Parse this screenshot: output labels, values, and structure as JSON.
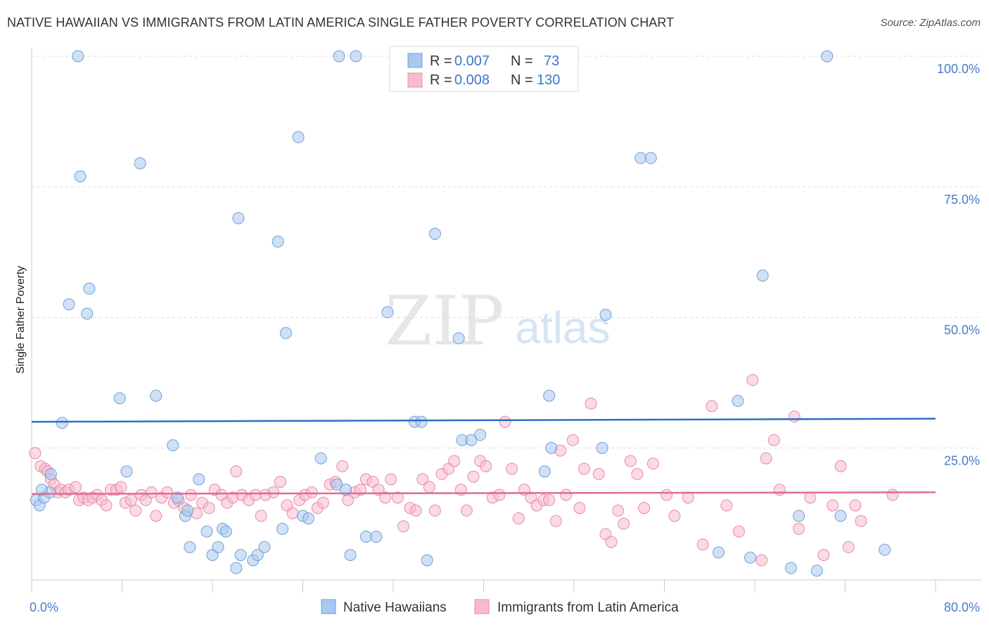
{
  "title": "NATIVE HAWAIIAN VS IMMIGRANTS FROM LATIN AMERICA SINGLE FATHER POVERTY CORRELATION CHART",
  "source": "Source: ZipAtlas.com",
  "watermark": {
    "zip": "ZIP",
    "atlas": "atlas"
  },
  "colors": {
    "blue_fill": "#a9c8ef",
    "blue_stroke": "#6f9fd8",
    "blue_line": "#2b6fc7",
    "pink_fill": "#f6bccd",
    "pink_stroke": "#e88aa8",
    "pink_line": "#e36a94",
    "grid": "#dcdcdc",
    "tick_text": "#4a7cc7"
  },
  "legend": {
    "rows": [
      {
        "r_label": "R =",
        "r_value": "0.007",
        "n_label": "N =",
        "n_value": "73"
      },
      {
        "r_label": "R =",
        "r_value": "0.008",
        "n_label": "N =",
        "n_value": "130"
      }
    ]
  },
  "chart_data": {
    "type": "scatter",
    "title": "NATIVE HAWAIIAN VS IMMIGRANTS FROM LATIN AMERICA SINGLE FATHER POVERTY CORRELATION CHART",
    "xlabel": "",
    "ylabel": "Single Father Poverty",
    "xlim": [
      0,
      80
    ],
    "ylim": [
      0,
      100
    ],
    "x_tick_labels": [
      "0.0%",
      "80.0%"
    ],
    "y_tick_labels": [
      "25.0%",
      "50.0%",
      "75.0%",
      "100.0%"
    ],
    "y_ticks": [
      25,
      50,
      75,
      100
    ],
    "legend_position": "top-center",
    "series": [
      {
        "name": "Native Hawaiians",
        "r": 0.007,
        "n": 73,
        "trend": {
          "y_at_x0": 30.0,
          "y_at_x80": 30.6
        },
        "points": [
          [
            0.4,
            15.0
          ],
          [
            0.7,
            14.0
          ],
          [
            1.1,
            15.5
          ],
          [
            1.7,
            20.0
          ],
          [
            1.6,
            16.5
          ],
          [
            2.7,
            29.8
          ],
          [
            3.3,
            52.5
          ],
          [
            4.1,
            100
          ],
          [
            4.3,
            77.0
          ],
          [
            5.1,
            55.5
          ],
          [
            4.9,
            50.7
          ],
          [
            7.8,
            34.5
          ],
          [
            8.4,
            20.5
          ],
          [
            9.6,
            79.5
          ],
          [
            11.0,
            35.0
          ],
          [
            12.5,
            25.5
          ],
          [
            12.9,
            15.5
          ],
          [
            13.6,
            12.0
          ],
          [
            13.8,
            13.0
          ],
          [
            14.0,
            6.0
          ],
          [
            14.8,
            19.0
          ],
          [
            15.5,
            9.0
          ],
          [
            16.0,
            4.5
          ],
          [
            16.5,
            6.0
          ],
          [
            16.9,
            9.5
          ],
          [
            17.2,
            9.0
          ],
          [
            18.1,
            2.0
          ],
          [
            18.5,
            4.5
          ],
          [
            18.3,
            69.0
          ],
          [
            19.6,
            3.5
          ],
          [
            20.0,
            4.5
          ],
          [
            20.6,
            6.0
          ],
          [
            21.8,
            64.5
          ],
          [
            22.2,
            9.5
          ],
          [
            22.5,
            47.0
          ],
          [
            23.6,
            84.5
          ],
          [
            24.0,
            12.0
          ],
          [
            24.5,
            11.5
          ],
          [
            25.6,
            23.0
          ],
          [
            27.0,
            18.0
          ],
          [
            27.2,
            100
          ],
          [
            27.8,
            17.0
          ],
          [
            28.2,
            4.5
          ],
          [
            28.7,
            100
          ],
          [
            29.6,
            8.0
          ],
          [
            30.5,
            8.0
          ],
          [
            31.5,
            51.0
          ],
          [
            33.9,
            30.0
          ],
          [
            34.5,
            30.0
          ],
          [
            35.0,
            3.5
          ],
          [
            35.7,
            66.0
          ],
          [
            37.8,
            46.0
          ],
          [
            38.1,
            26.5
          ],
          [
            38.9,
            26.5
          ],
          [
            39.7,
            27.5
          ],
          [
            45.4,
            20.5
          ],
          [
            45.8,
            35.0
          ],
          [
            46.0,
            25.0
          ],
          [
            50.5,
            25.0
          ],
          [
            50.8,
            50.5
          ],
          [
            53.9,
            80.5
          ],
          [
            54.8,
            80.5
          ],
          [
            60.8,
            5.0
          ],
          [
            62.5,
            34.0
          ],
          [
            63.6,
            4.0
          ],
          [
            64.7,
            58.0
          ],
          [
            67.2,
            2.0
          ],
          [
            67.9,
            12.0
          ],
          [
            69.5,
            1.5
          ],
          [
            70.4,
            100
          ],
          [
            71.6,
            12.0
          ],
          [
            75.5,
            5.5
          ],
          [
            0.9,
            17.0
          ]
        ]
      },
      {
        "name": "Immigrants from Latin America",
        "r": 0.008,
        "n": 130,
        "trend": {
          "y_at_x0": 16.2,
          "y_at_x80": 16.5
        },
        "points": [
          [
            0.3,
            24.0
          ],
          [
            0.8,
            21.5
          ],
          [
            1.2,
            21.0
          ],
          [
            1.4,
            20.5
          ],
          [
            1.7,
            19.0
          ],
          [
            2.0,
            18.0
          ],
          [
            2.3,
            16.5
          ],
          [
            2.6,
            17.0
          ],
          [
            3.0,
            16.5
          ],
          [
            3.3,
            17.0
          ],
          [
            3.9,
            17.5
          ],
          [
            4.2,
            15.0
          ],
          [
            4.6,
            15.5
          ],
          [
            5.0,
            15.0
          ],
          [
            5.4,
            15.5
          ],
          [
            5.8,
            16.0
          ],
          [
            6.2,
            15.0
          ],
          [
            6.6,
            14.0
          ],
          [
            7.0,
            17.0
          ],
          [
            7.5,
            17.0
          ],
          [
            7.9,
            17.5
          ],
          [
            8.3,
            14.5
          ],
          [
            8.8,
            15.0
          ],
          [
            9.2,
            13.0
          ],
          [
            9.7,
            16.0
          ],
          [
            10.1,
            15.0
          ],
          [
            10.6,
            16.5
          ],
          [
            11.0,
            12.0
          ],
          [
            11.5,
            15.5
          ],
          [
            12.0,
            16.5
          ],
          [
            12.6,
            14.5
          ],
          [
            13.0,
            15.0
          ],
          [
            13.5,
            13.5
          ],
          [
            14.1,
            16.0
          ],
          [
            14.6,
            12.5
          ],
          [
            15.1,
            14.5
          ],
          [
            15.7,
            13.5
          ],
          [
            16.2,
            17.0
          ],
          [
            16.8,
            16.0
          ],
          [
            17.3,
            14.5
          ],
          [
            17.8,
            15.5
          ],
          [
            18.1,
            20.5
          ],
          [
            18.6,
            16.0
          ],
          [
            19.2,
            15.0
          ],
          [
            19.8,
            16.0
          ],
          [
            20.3,
            12.0
          ],
          [
            20.7,
            16.0
          ],
          [
            21.4,
            16.5
          ],
          [
            22.0,
            18.5
          ],
          [
            22.6,
            14.0
          ],
          [
            23.1,
            12.5
          ],
          [
            23.7,
            15.0
          ],
          [
            24.2,
            16.0
          ],
          [
            24.8,
            16.5
          ],
          [
            25.3,
            13.5
          ],
          [
            25.8,
            14.5
          ],
          [
            26.4,
            18.0
          ],
          [
            26.9,
            18.5
          ],
          [
            27.5,
            21.5
          ],
          [
            28.0,
            15.0
          ],
          [
            28.6,
            16.5
          ],
          [
            29.1,
            17.0
          ],
          [
            29.6,
            19.0
          ],
          [
            30.2,
            18.5
          ],
          [
            30.7,
            17.0
          ],
          [
            31.3,
            15.5
          ],
          [
            31.8,
            19.0
          ],
          [
            32.4,
            15.5
          ],
          [
            32.9,
            10.0
          ],
          [
            33.5,
            13.5
          ],
          [
            34.0,
            13.0
          ],
          [
            34.6,
            19.0
          ],
          [
            35.2,
            17.5
          ],
          [
            35.7,
            13.0
          ],
          [
            36.3,
            20.0
          ],
          [
            36.9,
            21.0
          ],
          [
            37.4,
            22.5
          ],
          [
            38.0,
            17.0
          ],
          [
            38.5,
            13.0
          ],
          [
            39.1,
            19.5
          ],
          [
            39.7,
            22.5
          ],
          [
            40.2,
            21.5
          ],
          [
            40.8,
            15.5
          ],
          [
            41.4,
            16.0
          ],
          [
            41.9,
            30.0
          ],
          [
            42.5,
            21.0
          ],
          [
            43.1,
            11.5
          ],
          [
            43.6,
            17.0
          ],
          [
            44.2,
            15.5
          ],
          [
            44.7,
            14.0
          ],
          [
            45.3,
            15.0
          ],
          [
            45.8,
            15.0
          ],
          [
            46.4,
            11.0
          ],
          [
            46.8,
            24.5
          ],
          [
            47.3,
            16.0
          ],
          [
            47.9,
            26.5
          ],
          [
            48.5,
            13.5
          ],
          [
            48.9,
            21.0
          ],
          [
            49.5,
            33.5
          ],
          [
            50.2,
            20.0
          ],
          [
            50.8,
            8.5
          ],
          [
            51.3,
            7.0
          ],
          [
            51.9,
            13.0
          ],
          [
            52.4,
            10.5
          ],
          [
            53.0,
            22.5
          ],
          [
            53.6,
            20.0
          ],
          [
            54.2,
            13.5
          ],
          [
            55.0,
            22.0
          ],
          [
            56.2,
            16.0
          ],
          [
            56.9,
            12.0
          ],
          [
            58.1,
            15.5
          ],
          [
            59.4,
            6.5
          ],
          [
            60.2,
            33.0
          ],
          [
            61.5,
            14.0
          ],
          [
            62.6,
            9.0
          ],
          [
            63.8,
            38.0
          ],
          [
            64.6,
            3.5
          ],
          [
            65.0,
            23.0
          ],
          [
            65.7,
            26.5
          ],
          [
            66.2,
            17.0
          ],
          [
            67.5,
            31.0
          ],
          [
            67.9,
            9.5
          ],
          [
            68.9,
            15.5
          ],
          [
            70.1,
            4.5
          ],
          [
            70.9,
            14.0
          ],
          [
            71.6,
            21.5
          ],
          [
            72.3,
            6.0
          ],
          [
            72.9,
            14.0
          ],
          [
            73.4,
            11.0
          ],
          [
            76.2,
            16.0
          ]
        ]
      }
    ]
  },
  "bottom_legend": [
    {
      "label": "Native Hawaiians"
    },
    {
      "label": "Immigrants from Latin America"
    }
  ]
}
